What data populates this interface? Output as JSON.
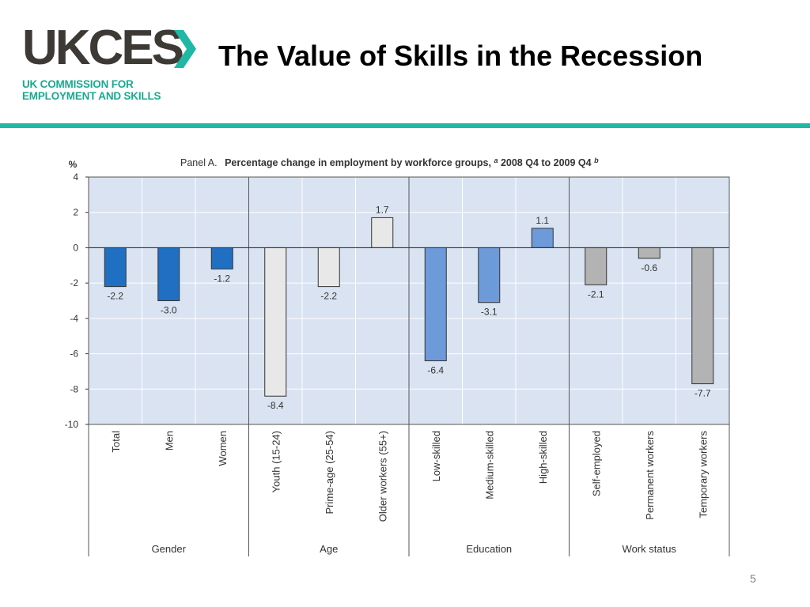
{
  "header": {
    "logo_text": "UKCES",
    "logo_line1": "UK COMMISSION FOR",
    "logo_line2": "EMPLOYMENT AND SKILLS",
    "title": "The Value of Skills in the Recession"
  },
  "footer": {
    "page_number": "5"
  },
  "colors": {
    "brand_teal": "#20b8a4",
    "gender_bar": "#1f6fc2",
    "age_bar": "#e8e8e8",
    "education_bar": "#6d9ad9",
    "work_status_bar": "#b3b3b3",
    "plot_bg": "#dae3f1"
  },
  "chart_data": {
    "type": "bar",
    "panel": "Panel A.",
    "title": "Percentage change in employment by workforce groups,",
    "title_sup_a": "a",
    "title_period": " 2008 Q4 to 2009 Q4",
    "title_sup_b": "b",
    "ylabel": "%",
    "ylim": [
      -10,
      4
    ],
    "yticks": [
      4,
      2,
      0,
      -2,
      -4,
      -6,
      -8,
      -10
    ],
    "grid": true,
    "groups": [
      {
        "name": "Gender",
        "start": 0,
        "end": 2
      },
      {
        "name": "Age",
        "start": 3,
        "end": 5
      },
      {
        "name": "Education",
        "start": 6,
        "end": 8
      },
      {
        "name": "Work status",
        "start": 9,
        "end": 11
      }
    ],
    "categories": [
      "Total",
      "Men",
      "Women",
      "Youth (15-24)",
      "Prime-age (25-54)",
      "Older workers (55+)",
      "Low-skilled",
      "Medium-skilled",
      "High-skilled",
      "Self-employed",
      "Permanent workers",
      "Temporary workers"
    ],
    "values": [
      -2.2,
      -3.0,
      -1.2,
      -8.4,
      -2.2,
      1.7,
      -6.4,
      -3.1,
      1.1,
      -2.1,
      -0.6,
      -7.7
    ],
    "labels": [
      "-2.2",
      "-3.0",
      "-1.2",
      "-8.4",
      "-2.2",
      "1.7",
      "-6.4",
      "-3.1",
      "1.1",
      "-2.1",
      "-0.6",
      "-7.7"
    ]
  }
}
